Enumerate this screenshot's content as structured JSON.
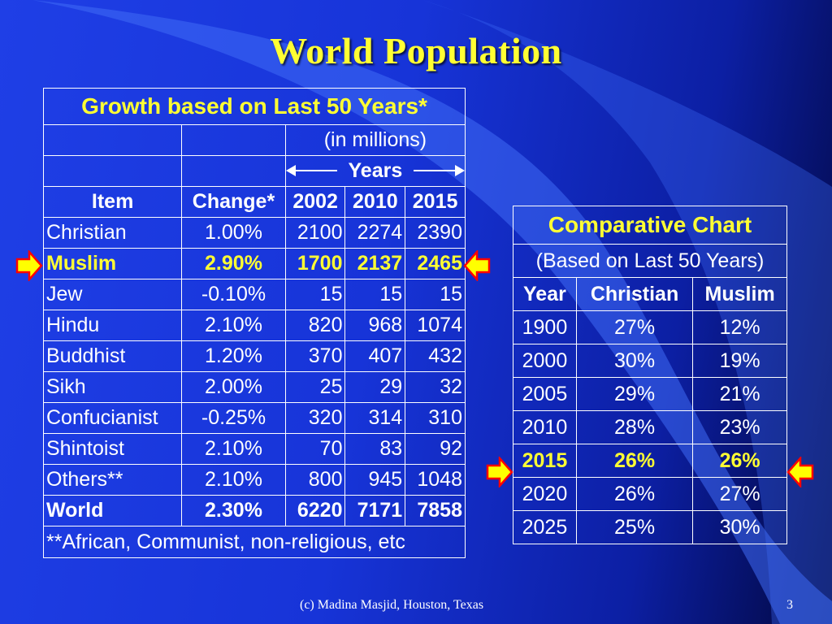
{
  "slide": {
    "title": "World Population",
    "footer": "(c) Madina Masjid, Houston, Texas",
    "page_number": "3",
    "pointer_icon": "yellow-red-arrow-icon"
  },
  "growth_table": {
    "caption": "Growth based on Last 50 Years*",
    "units": "(in millions)",
    "years_label": "Years",
    "headers": [
      "Item",
      "Change*",
      "2002",
      "2010",
      "2015"
    ],
    "rows": [
      {
        "item": "Christian",
        "change": "1.00%",
        "y2002": "2100",
        "y2010": "2274",
        "y2015": "2390"
      },
      {
        "item": "Muslim",
        "change": "2.90%",
        "y2002": "1700",
        "y2010": "2137",
        "y2015": "2465"
      },
      {
        "item": "Jew",
        "change": "-0.10%",
        "y2002": "15",
        "y2010": "15",
        "y2015": "15"
      },
      {
        "item": "Hindu",
        "change": "2.10%",
        "y2002": "820",
        "y2010": "968",
        "y2015": "1074"
      },
      {
        "item": "Buddhist",
        "change": "1.20%",
        "y2002": "370",
        "y2010": "407",
        "y2015": "432"
      },
      {
        "item": "Sikh",
        "change": "2.00%",
        "y2002": "25",
        "y2010": "29",
        "y2015": "32"
      },
      {
        "item": "Confucianist",
        "change": "-0.25%",
        "y2002": "320",
        "y2010": "314",
        "y2015": "310"
      },
      {
        "item": "Shintoist",
        "change": "2.10%",
        "y2002": "70",
        "y2010": "83",
        "y2015": "92"
      },
      {
        "item": "Others**",
        "change": "2.10%",
        "y2002": "800",
        "y2010": "945",
        "y2015": "1048"
      },
      {
        "item": "World",
        "change": "2.30%",
        "y2002": "6220",
        "y2010": "7171",
        "y2015": "7858"
      }
    ],
    "footnote": "**African, Communist, non-religious, etc"
  },
  "comparative_table": {
    "caption": "Comparative Chart",
    "subcaption": "(Based on Last 50 Years)",
    "headers": [
      "Year",
      "Christian",
      "Muslim"
    ],
    "rows": [
      {
        "year": "1900",
        "christian": "27%",
        "muslim": "12%"
      },
      {
        "year": "2000",
        "christian": "30%",
        "muslim": "19%"
      },
      {
        "year": "2005",
        "christian": "29%",
        "muslim": "21%"
      },
      {
        "year": "2010",
        "christian": "28%",
        "muslim": "23%"
      },
      {
        "year": "2015",
        "christian": "26%",
        "muslim": "26%"
      },
      {
        "year": "2020",
        "christian": "26%",
        "muslim": "27%"
      },
      {
        "year": "2025",
        "christian": "25%",
        "muslim": "30%"
      }
    ]
  },
  "colors": {
    "highlight": "#ffff33",
    "background": "#1f3fe6",
    "pointer_fill": "#ffff00",
    "pointer_border": "#ff0000"
  }
}
